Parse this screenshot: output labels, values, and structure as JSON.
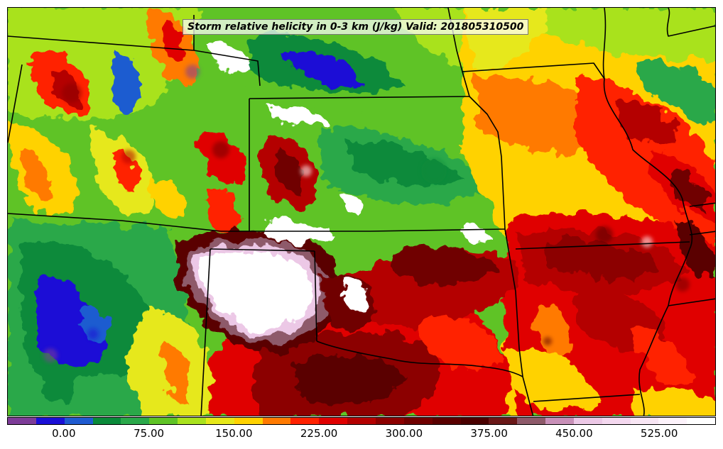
{
  "map": {
    "title": "Storm relative helicity in 0-3 km (J/kg) Valid: 201805310500"
  },
  "colorbar": {
    "min": -50,
    "max": 575,
    "interval": 25,
    "colors": [
      "#7d3c98",
      "#1a0fd6",
      "#1f5bd0",
      "#0a8a3a",
      "#2aa84a",
      "#5fc326",
      "#a9e21e",
      "#e6e81a",
      "#ffd200",
      "#ff7a00",
      "#ff2200",
      "#e00000",
      "#b40000",
      "#8c0000",
      "#700000",
      "#5a0000",
      "#4a0000",
      "#6a1818",
      "#8e5a6a",
      "#c890b8",
      "#ecc8e6",
      "#f4d8ef",
      "#f8e6f4",
      "#fdf3fb",
      "#ffffff"
    ],
    "tick_labels": [
      "0.00",
      "75.00",
      "150.00",
      "225.00",
      "300.00",
      "375.00",
      "450.00",
      "525.00"
    ],
    "tick_values": [
      0,
      75,
      150,
      225,
      300,
      375,
      450,
      525
    ]
  }
}
